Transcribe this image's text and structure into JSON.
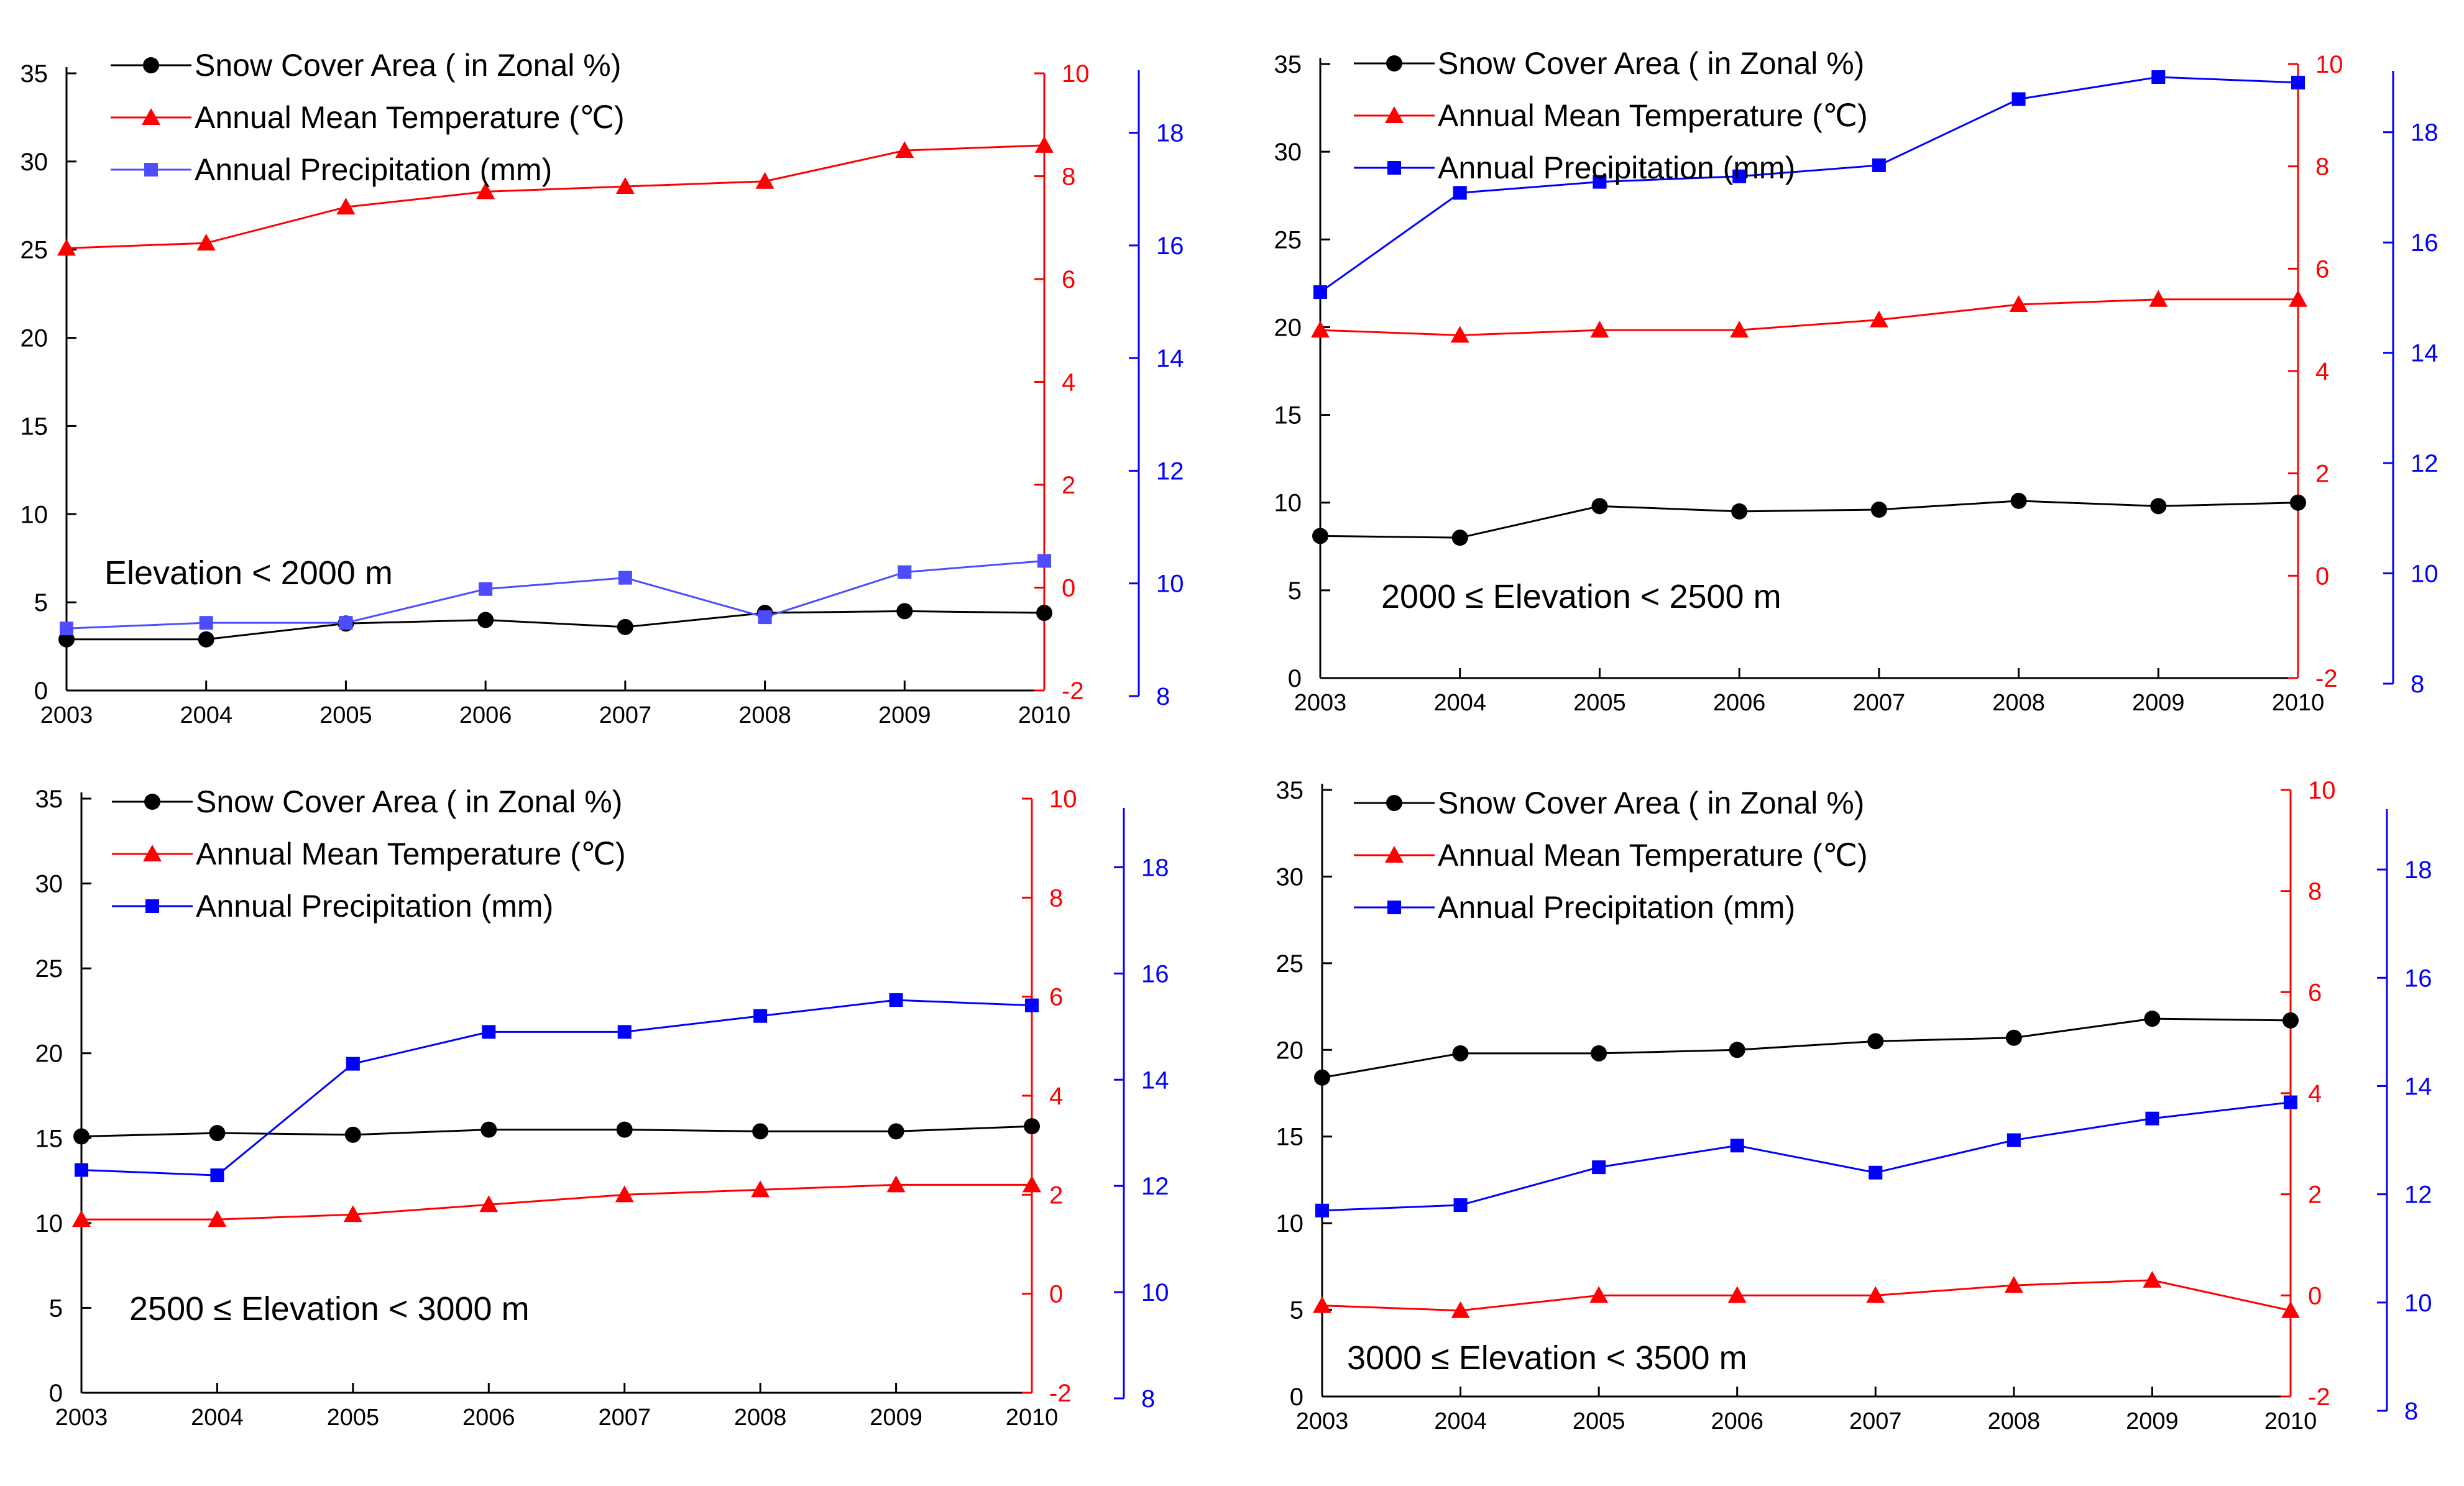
{
  "figure": {
    "colors": {
      "snow": "#000000",
      "temp": "#ff0000",
      "precip": "#0000ff",
      "precip_light": "#4d4dff",
      "axis": "#000000",
      "background": "#ffffff"
    },
    "legend_labels": {
      "snow": "Snow Cover  Area ( in  Zonal %)",
      "temp": "Annual Mean Temperature (℃)",
      "precip": "Annual Precipitation (mm)"
    }
  },
  "chart_data": [
    {
      "type": "line",
      "panel": "top-left",
      "annotation": "Elevation < 2000 m",
      "x": [
        2003,
        2004,
        2005,
        2006,
        2007,
        2008,
        2009,
        2010
      ],
      "x_tick_labels": [
        "2003",
        "2004",
        "2005",
        "2006",
        "2007",
        "2008",
        "2009",
        "2010"
      ],
      "xlim": [
        2003,
        2010
      ],
      "left_axis": {
        "ylim": [
          0,
          35
        ],
        "ticks": [
          0,
          5,
          10,
          15,
          20,
          25,
          30,
          35
        ]
      },
      "right_axis_temp": {
        "ylim": [
          -2,
          10
        ],
        "ticks": [
          -2,
          0,
          2,
          4,
          6,
          8,
          10
        ],
        "color": "#ff0000"
      },
      "right_axis_precip": {
        "ylim": [
          8,
          19
        ],
        "ticks": [
          8,
          10,
          12,
          14,
          16,
          18
        ],
        "color": "#0000ff"
      },
      "series": [
        {
          "name": "Snow Cover  Area ( in  Zonal %)",
          "key": "snow",
          "axis": "left",
          "marker": "circle",
          "values": [
            2.9,
            2.9,
            3.8,
            4.0,
            3.6,
            4.4,
            4.5,
            4.4
          ]
        },
        {
          "name": "Annual Mean Temperature (℃)",
          "key": "temp",
          "axis": "temp",
          "marker": "triangle",
          "values": [
            6.6,
            6.7,
            7.4,
            7.7,
            7.8,
            7.9,
            8.5,
            8.6
          ]
        },
        {
          "name": "Annual Precipitation (mm)",
          "key": "precip",
          "axis": "precip",
          "marker": "square",
          "values": [
            9.2,
            9.3,
            9.3,
            9.9,
            10.1,
            9.4,
            10.2,
            10.4
          ]
        }
      ],
      "legend": "top-left"
    },
    {
      "type": "line",
      "panel": "top-right",
      "annotation": "2000 ≤ Elevation < 2500 m",
      "x": [
        2003,
        2004,
        2005,
        2006,
        2007,
        2008,
        2009,
        2010
      ],
      "x_tick_labels": [
        "2003",
        "2004",
        "2005",
        "2006",
        "2007",
        "2008",
        "2009",
        "2010"
      ],
      "xlim": [
        2003,
        2010
      ],
      "left_axis": {
        "ylim": [
          0,
          35
        ],
        "ticks": [
          0,
          5,
          10,
          15,
          20,
          25,
          30,
          35
        ]
      },
      "right_axis_temp": {
        "ylim": [
          -2,
          10
        ],
        "ticks": [
          -2,
          0,
          2,
          4,
          6,
          8,
          10
        ],
        "color": "#ff0000"
      },
      "right_axis_precip": {
        "ylim": [
          8,
          19
        ],
        "ticks": [
          8,
          10,
          12,
          14,
          16,
          18
        ],
        "color": "#0000ff"
      },
      "series": [
        {
          "name": "Snow Cover  Area ( in  Zonal %)",
          "key": "snow",
          "axis": "left",
          "marker": "circle",
          "values": [
            8.1,
            8.0,
            9.8,
            9.5,
            9.6,
            10.1,
            9.8,
            10.0
          ]
        },
        {
          "name": "Annual Mean Temperature (℃)",
          "key": "temp",
          "axis": "temp",
          "marker": "triangle",
          "values": [
            4.8,
            4.7,
            4.8,
            4.8,
            5.0,
            5.3,
            5.4,
            5.4
          ]
        },
        {
          "name": "Annual Precipitation (mm)",
          "key": "precip",
          "axis": "precip",
          "marker": "square",
          "values": [
            15.1,
            16.9,
            17.1,
            17.2,
            17.4,
            18.6,
            19.0,
            18.9
          ]
        }
      ],
      "legend": "top-left"
    },
    {
      "type": "line",
      "panel": "bottom-left",
      "annotation": "2500 ≤ Elevation < 3000 m",
      "x": [
        2003,
        2004,
        2005,
        2006,
        2007,
        2008,
        2009,
        2010
      ],
      "x_tick_labels": [
        "2003",
        "2004",
        "2005",
        "2006",
        "2007",
        "2008",
        "2009",
        "2010"
      ],
      "xlim": [
        2003,
        2010
      ],
      "left_axis": {
        "ylim": [
          0,
          35
        ],
        "ticks": [
          0,
          5,
          10,
          15,
          20,
          25,
          30,
          35
        ]
      },
      "right_axis_temp": {
        "ylim": [
          -2,
          10
        ],
        "ticks": [
          -2,
          0,
          2,
          4,
          6,
          8,
          10
        ],
        "color": "#ff0000"
      },
      "right_axis_precip": {
        "ylim": [
          8,
          19
        ],
        "ticks": [
          8,
          10,
          12,
          14,
          16,
          18
        ],
        "color": "#0000ff"
      },
      "series": [
        {
          "name": "Snow Cover  Area ( in  Zonal %)",
          "key": "snow",
          "axis": "left",
          "marker": "circle",
          "values": [
            15.1,
            15.3,
            15.2,
            15.5,
            15.5,
            15.4,
            15.4,
            15.7
          ]
        },
        {
          "name": "Annual Mean Temperature (℃)",
          "key": "temp",
          "axis": "temp",
          "marker": "triangle",
          "values": [
            1.5,
            1.5,
            1.6,
            1.8,
            2.0,
            2.1,
            2.2,
            2.2
          ]
        },
        {
          "name": "Annual Precipitation (mm)",
          "key": "precip",
          "axis": "precip",
          "marker": "square",
          "values": [
            12.3,
            12.2,
            14.3,
            14.9,
            14.9,
            15.2,
            15.5,
            15.4
          ]
        }
      ],
      "legend": "top-left"
    },
    {
      "type": "line",
      "panel": "bottom-right",
      "annotation": "3000 ≤ Elevation < 3500 m",
      "x": [
        2003,
        2004,
        2005,
        2006,
        2007,
        2008,
        2009,
        2010
      ],
      "x_tick_labels": [
        "2003",
        "2004",
        "2005",
        "2006",
        "2007",
        "2008",
        "2009",
        "2010"
      ],
      "xlim": [
        2003,
        2010
      ],
      "left_axis": {
        "ylim": [
          0,
          35
        ],
        "ticks": [
          0,
          5,
          10,
          15,
          20,
          25,
          30,
          35
        ]
      },
      "right_axis_temp": {
        "ylim": [
          -2,
          10
        ],
        "ticks": [
          -2,
          0,
          2,
          4,
          6,
          8,
          10
        ],
        "color": "#ff0000"
      },
      "right_axis_precip": {
        "ylim": [
          8,
          19
        ],
        "ticks": [
          8,
          10,
          12,
          14,
          16,
          18
        ],
        "color": "#0000ff"
      },
      "series": [
        {
          "name": "Snow Cover  Area ( in  Zonal %)",
          "key": "snow",
          "axis": "left",
          "marker": "circle",
          "values": [
            18.4,
            19.8,
            19.8,
            20.0,
            20.5,
            20.7,
            21.8,
            21.7
          ]
        },
        {
          "name": "Annual Mean Temperature (℃)",
          "key": "temp",
          "axis": "temp",
          "marker": "triangle",
          "values": [
            -0.2,
            -0.3,
            0.0,
            0.0,
            0.0,
            0.2,
            0.3,
            -0.3
          ]
        },
        {
          "name": "Annual Precipitation (mm)",
          "key": "precip",
          "axis": "precip",
          "marker": "square",
          "values": [
            11.7,
            11.8,
            12.5,
            12.9,
            12.4,
            13.0,
            13.4,
            13.7
          ]
        }
      ],
      "legend": "top-left"
    }
  ]
}
